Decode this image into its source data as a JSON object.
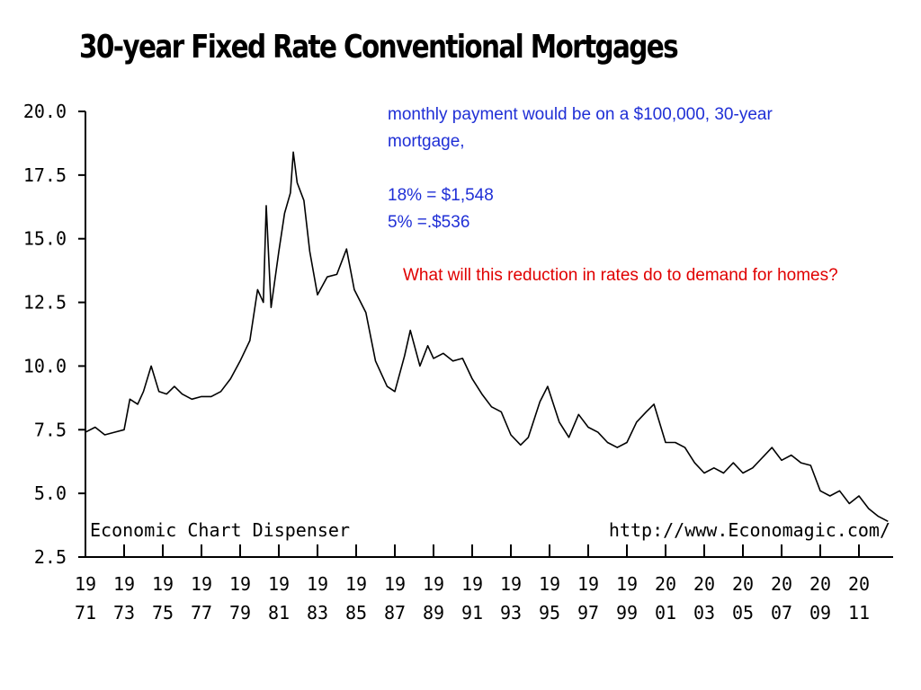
{
  "chart_data": {
    "type": "line",
    "title": "30-year Fixed Rate Conventional Mortgages",
    "source_left": "Economic Chart Dispenser",
    "source_right": "http://www.Economagic.com/",
    "ylim": [
      2.5,
      20.0
    ],
    "yticks": [
      "20.0",
      "17.5",
      "15.0",
      "12.5",
      "10.0",
      "7.5",
      "5.0",
      "2.5"
    ],
    "xlim": [
      1971,
      2012.8
    ],
    "xticks": [
      {
        "top": "19",
        "bottom": "71"
      },
      {
        "top": "19",
        "bottom": "73"
      },
      {
        "top": "19",
        "bottom": "75"
      },
      {
        "top": "19",
        "bottom": "77"
      },
      {
        "top": "19",
        "bottom": "79"
      },
      {
        "top": "19",
        "bottom": "81"
      },
      {
        "top": "19",
        "bottom": "83"
      },
      {
        "top": "19",
        "bottom": "85"
      },
      {
        "top": "19",
        "bottom": "87"
      },
      {
        "top": "19",
        "bottom": "89"
      },
      {
        "top": "19",
        "bottom": "91"
      },
      {
        "top": "19",
        "bottom": "93"
      },
      {
        "top": "19",
        "bottom": "95"
      },
      {
        "top": "19",
        "bottom": "97"
      },
      {
        "top": "19",
        "bottom": "99"
      },
      {
        "top": "20",
        "bottom": "01"
      },
      {
        "top": "20",
        "bottom": "03"
      },
      {
        "top": "20",
        "bottom": "05"
      },
      {
        "top": "20",
        "bottom": "07"
      },
      {
        "top": "20",
        "bottom": "09"
      },
      {
        "top": "20",
        "bottom": "11"
      }
    ],
    "grid": false,
    "series": [
      {
        "x": [
          1971.0,
          1971.5,
          1972.0,
          1972.5,
          1973.0,
          1973.3,
          1973.7,
          1974.0,
          1974.4,
          1974.8,
          1975.2,
          1975.6,
          1976.0,
          1976.5,
          1977.0,
          1977.5,
          1978.0,
          1978.5,
          1979.0,
          1979.5,
          1979.9,
          1980.2,
          1980.35,
          1980.6,
          1981.0,
          1981.3,
          1981.6,
          1981.75,
          1981.95,
          1982.3,
          1982.6,
          1983.0,
          1983.5,
          1984.0,
          1984.5,
          1984.9,
          1985.5,
          1986.0,
          1986.6,
          1987.0,
          1987.5,
          1987.8,
          1988.3,
          1988.7,
          1989.0,
          1989.5,
          1990.0,
          1990.5,
          1991.0,
          1991.5,
          1992.0,
          1992.5,
          1993.0,
          1993.5,
          1993.9,
          1994.5,
          1994.9,
          1995.5,
          1996.0,
          1996.5,
          1997.0,
          1997.5,
          1998.0,
          1998.5,
          1999.0,
          1999.5,
          2000.0,
          2000.4,
          2001.0,
          2001.5,
          2002.0,
          2002.5,
          2003.0,
          2003.5,
          2004.0,
          2004.5,
          2005.0,
          2005.5,
          2006.0,
          2006.5,
          2007.0,
          2007.5,
          2008.0,
          2008.5,
          2009.0,
          2009.5,
          2010.0,
          2010.5,
          2011.0,
          2011.5,
          2012.0,
          2012.5
        ],
        "y": [
          7.4,
          7.6,
          7.3,
          7.4,
          7.5,
          8.7,
          8.5,
          9.0,
          10.0,
          9.0,
          8.9,
          9.2,
          8.9,
          8.7,
          8.8,
          8.8,
          9.0,
          9.5,
          10.2,
          11.0,
          13.0,
          12.5,
          16.3,
          12.3,
          14.5,
          16.0,
          16.8,
          18.4,
          17.2,
          16.5,
          14.5,
          12.8,
          13.5,
          13.6,
          14.6,
          13.0,
          12.1,
          10.2,
          9.2,
          9.0,
          10.4,
          11.4,
          10.0,
          10.8,
          10.3,
          10.5,
          10.2,
          10.3,
          9.5,
          8.9,
          8.4,
          8.2,
          7.3,
          6.9,
          7.2,
          8.6,
          9.2,
          7.8,
          7.2,
          8.1,
          7.6,
          7.4,
          7.0,
          6.8,
          7.0,
          7.8,
          8.2,
          8.5,
          7.0,
          7.0,
          6.8,
          6.2,
          5.8,
          6.0,
          5.8,
          6.2,
          5.8,
          6.0,
          6.4,
          6.8,
          6.3,
          6.5,
          6.2,
          6.1,
          5.1,
          4.9,
          5.1,
          4.6,
          4.9,
          4.4,
          4.1,
          3.9
        ]
      }
    ]
  },
  "annotations": {
    "blue_line1": "monthly payment would be on a $100,000, 30-year",
    "blue_line2": "mortgage,",
    "blue_line3": "18% = $1,548",
    "blue_line4": "5% =.$536",
    "red_question": "What will this reduction in rates do to demand for homes?"
  },
  "colors": {
    "line": "#000000",
    "blue_text": "#1f2fd6",
    "red_text": "#e00000"
  }
}
